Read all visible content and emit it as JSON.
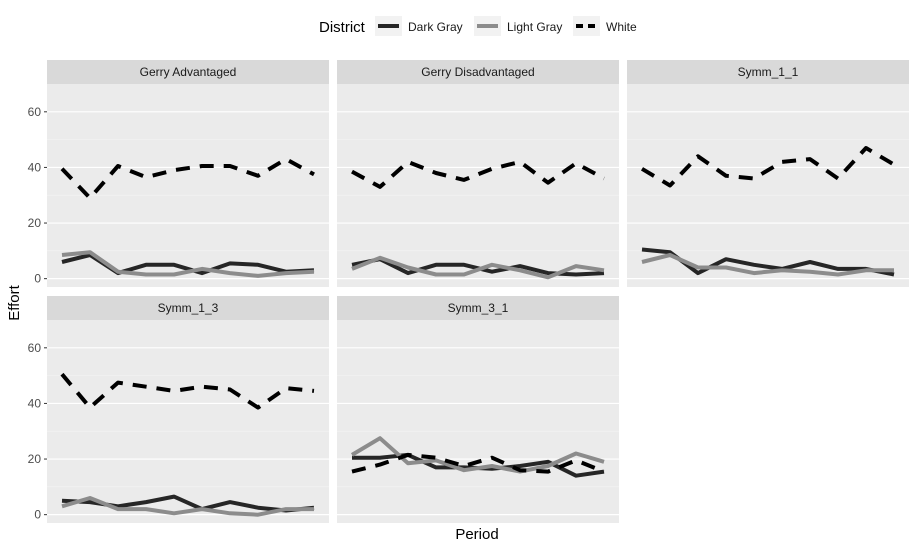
{
  "chart_data": {
    "type": "line",
    "facet_type": "faceted line chart (facet_wrap)",
    "xlabel": "Period",
    "ylabel": "Effort",
    "ylim": [
      -3,
      70
    ],
    "y_ticks": [
      0,
      20,
      40,
      60
    ],
    "x_tick_labels": false,
    "grid": true,
    "legend": {
      "title": "District",
      "position": "top",
      "entries": [
        {
          "name": "Dark Gray",
          "color": "#262626",
          "dash": "solid"
        },
        {
          "name": "Light Gray",
          "color": "#8c8c8c",
          "dash": "solid"
        },
        {
          "name": "White",
          "color": "#000000",
          "dash": "dashed"
        }
      ]
    },
    "x": [
      1,
      2,
      3,
      4,
      5,
      6,
      7,
      8,
      9,
      10
    ],
    "panels": [
      {
        "title": "Gerry Advantaged",
        "series": [
          {
            "name": "Dark Gray",
            "values": [
              6,
              8.5,
              2,
              5,
              5,
              2,
              5.5,
              5,
              2.5,
              3
            ]
          },
          {
            "name": "Light Gray",
            "values": [
              8.5,
              9.5,
              2.5,
              1.5,
              1.5,
              3.5,
              2,
              1,
              2,
              2.5
            ]
          },
          {
            "name": "White",
            "values": [
              39.5,
              29,
              40.5,
              36.5,
              39,
              40.5,
              40.5,
              37,
              43,
              37.5
            ]
          }
        ]
      },
      {
        "title": "Gerry Disadvantaged",
        "series": [
          {
            "name": "Dark Gray",
            "values": [
              5,
              7,
              2,
              5,
              5,
              2.5,
              4.5,
              2,
              1.5,
              2
            ]
          },
          {
            "name": "Light Gray",
            "values": [
              3.5,
              7.5,
              4,
              1.5,
              1.5,
              5,
              3,
              0.5,
              4.5,
              3
            ]
          },
          {
            "name": "White",
            "values": [
              38.5,
              33,
              42,
              38,
              35.5,
              39.5,
              42,
              34.5,
              41.5,
              36
            ]
          }
        ]
      },
      {
        "title": "Symm_1_1",
        "series": [
          {
            "name": "Dark Gray",
            "values": [
              10.5,
              9.5,
              2,
              7,
              5,
              3.5,
              6,
              3.5,
              3.5,
              1.5
            ]
          },
          {
            "name": "Light Gray",
            "values": [
              6,
              8.5,
              4,
              4,
              2,
              3,
              2.5,
              1.5,
              3,
              3
            ]
          },
          {
            "name": "White",
            "values": [
              39.5,
              33.5,
              44,
              37,
              36,
              42,
              43,
              36,
              47,
              41
            ]
          }
        ]
      },
      {
        "title": "Symm_1_3",
        "series": [
          {
            "name": "Dark Gray",
            "values": [
              5,
              4.5,
              3,
              4.5,
              6.5,
              2,
              4.5,
              2.5,
              1.5,
              2.5
            ]
          },
          {
            "name": "Light Gray",
            "values": [
              3,
              6,
              2,
              2,
              0.5,
              2,
              0.5,
              0,
              2,
              2
            ]
          },
          {
            "name": "White",
            "values": [
              50.5,
              38.5,
              47.5,
              46,
              44.5,
              46,
              45,
              38.5,
              45.5,
              44.5
            ]
          }
        ]
      },
      {
        "title": "Symm_3_1",
        "series": [
          {
            "name": "Dark Gray",
            "values": [
              20.5,
              20.5,
              21.5,
              17,
              17,
              16.5,
              17.5,
              19,
              14,
              15.5
            ]
          },
          {
            "name": "Light Gray",
            "values": [
              21.5,
              27.5,
              18.5,
              19.5,
              16,
              17.5,
              15.5,
              17.5,
              22,
              19
            ]
          },
          {
            "name": "White",
            "values": [
              15.5,
              18,
              21.5,
              20.5,
              17.5,
              20.5,
              16,
              15.5,
              19.5,
              15.5
            ]
          }
        ]
      }
    ]
  }
}
